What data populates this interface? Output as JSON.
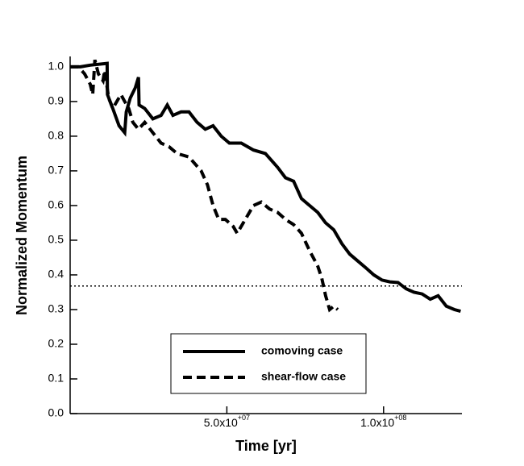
{
  "chart_data": {
    "type": "line",
    "xlabel": "Time [yr]",
    "ylabel": "Normalized Momentum",
    "xlim": [
      0,
      125000000
    ],
    "ylim": [
      0,
      1.03
    ],
    "xticks": [
      {
        "value": 50000000,
        "label": "5.0x10+07"
      },
      {
        "value": 100000000,
        "label": "1.0x10+08"
      }
    ],
    "yticks": [
      {
        "value": 0,
        "label": "0.0"
      },
      0.1,
      0.2,
      0.3,
      0.4,
      0.5,
      0.6,
      0.7,
      0.8,
      0.9,
      {
        "value": 1,
        "label": "1.0"
      }
    ],
    "reference_line": 0.368,
    "legend": "lower-center",
    "series": [
      {
        "name": "comoving case",
        "color": "#000000",
        "dash": "solid",
        "x": [
          0,
          3300000,
          6400000,
          11800000,
          11900000,
          13600000,
          15600000,
          17400000,
          17900000,
          19200000,
          20800000,
          21800000,
          22000000,
          23800000,
          26400000,
          29000000,
          31000000,
          32800000,
          35400000,
          37900000,
          40500000,
          43100000,
          45600000,
          48200000,
          50800000,
          54600000,
          58500000,
          62300000,
          66200000,
          68700000,
          71300000,
          73800000,
          76400000,
          79000000,
          81500000,
          84100000,
          86700000,
          89200000,
          91800000,
          94400000,
          96900000,
          99500000,
          102000000,
          104600000,
          107200000,
          109700000,
          112300000,
          114900000,
          117400000,
          120000000,
          122600000,
          124600000
        ],
        "values": [
          1.0,
          1.0,
          1.005,
          1.01,
          0.92,
          0.88,
          0.83,
          0.81,
          0.87,
          0.91,
          0.94,
          0.97,
          0.89,
          0.88,
          0.85,
          0.86,
          0.89,
          0.86,
          0.87,
          0.87,
          0.84,
          0.82,
          0.83,
          0.8,
          0.78,
          0.78,
          0.76,
          0.75,
          0.71,
          0.68,
          0.67,
          0.62,
          0.6,
          0.58,
          0.55,
          0.53,
          0.49,
          0.46,
          0.44,
          0.42,
          0.4,
          0.385,
          0.38,
          0.378,
          0.36,
          0.35,
          0.345,
          0.33,
          0.34,
          0.31,
          0.3,
          0.295
        ]
      },
      {
        "name": "shear-flow case",
        "color": "#000000",
        "dash": "dashed",
        "x": [
          0,
          2600000,
          4600000,
          6400000,
          7200000,
          7900000,
          9000000,
          10500000,
          11000000,
          12300000,
          13600000,
          14900000,
          16200000,
          17400000,
          18700000,
          20000000,
          21800000,
          23800000,
          26400000,
          29000000,
          31500000,
          34100000,
          37900000,
          41800000,
          43800000,
          45600000,
          47400000,
          49500000,
          52000000,
          53300000,
          55900000,
          58500000,
          61000000,
          63600000,
          66200000,
          68700000,
          71300000,
          73800000,
          76400000,
          79000000,
          80300000,
          81500000,
          82800000,
          84100000,
          85400000
        ],
        "values": [
          1.0,
          1.0,
          0.98,
          0.95,
          0.92,
          1.02,
          0.98,
          0.96,
          0.99,
          0.91,
          0.88,
          0.9,
          0.92,
          0.9,
          0.88,
          0.84,
          0.82,
          0.84,
          0.81,
          0.78,
          0.77,
          0.75,
          0.74,
          0.7,
          0.66,
          0.6,
          0.56,
          0.56,
          0.54,
          0.52,
          0.56,
          0.6,
          0.61,
          0.59,
          0.58,
          0.56,
          0.545,
          0.52,
          0.47,
          0.425,
          0.39,
          0.34,
          0.3,
          0.31,
          0.3
        ]
      }
    ]
  }
}
